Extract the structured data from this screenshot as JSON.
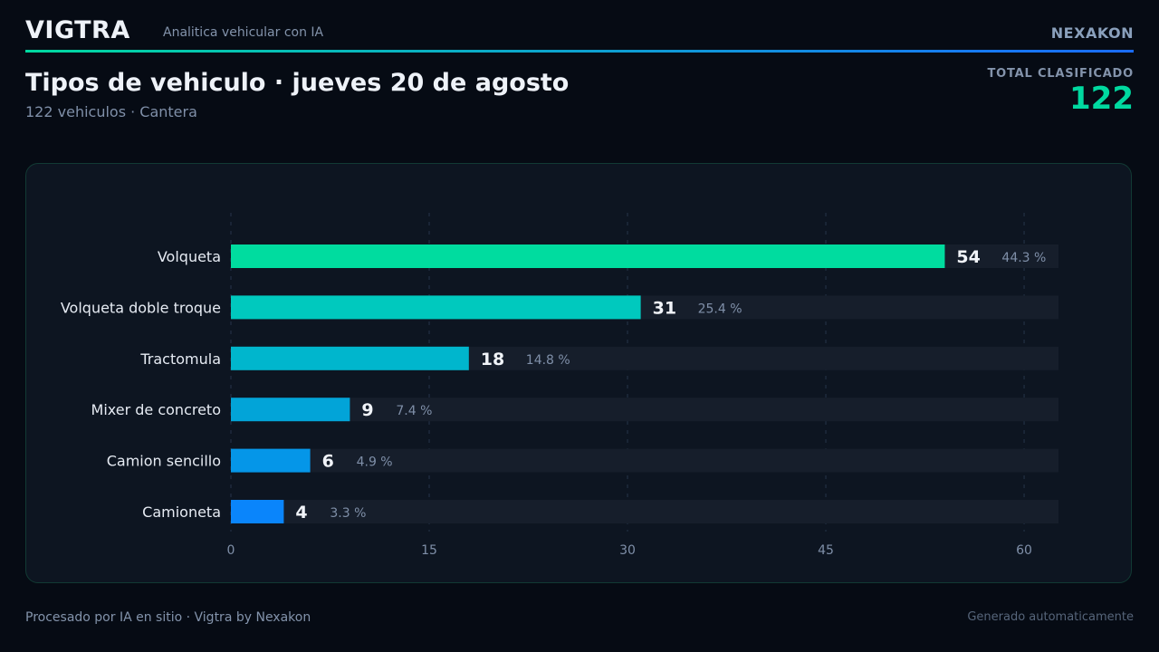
{
  "header": {
    "brand": "VIGTRA",
    "tagline": "Analitica vehicular con IA",
    "company": "NEXAKON"
  },
  "report": {
    "title": "Tipos de vehiculo · jueves 20 de agosto",
    "subtitle": "122 vehiculos  ·  Cantera",
    "total_label": "TOTAL CLASIFICADO",
    "total_value": "122"
  },
  "chart_data": {
    "type": "bar",
    "orientation": "horizontal",
    "categories": [
      "Volqueta",
      "Volqueta doble troque",
      "Tractomula",
      "Mixer de concreto",
      "Camion sencillo",
      "Camioneta"
    ],
    "values": [
      54,
      31,
      18,
      9,
      6,
      4
    ],
    "percent_labels": [
      "44.3 %",
      "25.4 %",
      "14.8 %",
      "7.4 %",
      "4.9 %",
      "3.3 %"
    ],
    "xlim": [
      0,
      62.6
    ],
    "xticks": [
      0,
      15,
      30,
      45,
      60
    ],
    "grid": true,
    "colors": [
      "#00dc9f",
      "#00c9be",
      "#00b6cd",
      "#02a4d8",
      "#0596e8",
      "#0a85fb"
    ]
  },
  "footer": {
    "left": "Procesado por IA en sitio · Vigtra by Nexakon",
    "right": "Generado automaticamente"
  }
}
